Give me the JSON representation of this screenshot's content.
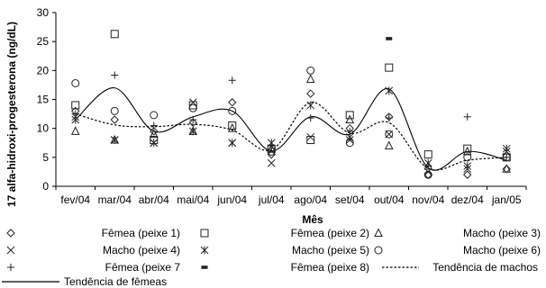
{
  "chart_data": {
    "type": "scatter",
    "title": "",
    "xlabel": "Mês",
    "ylabel": "17 alfa-hidroxi-progesterona (ng/dL)",
    "ylim": [
      0,
      30
    ],
    "yticks": [
      0,
      5,
      10,
      15,
      20,
      25,
      30
    ],
    "grid": false,
    "legend_position": "bottom",
    "categories": [
      "fev/04",
      "mar/04",
      "abr/04",
      "mai/04",
      "jun/04",
      "jul/04",
      "ago/04",
      "set/04",
      "out/04",
      "nov/04",
      "dez/04",
      "jan/05"
    ],
    "series": [
      {
        "name": "Fêmea (peixe 1)",
        "marker": "diamond",
        "values": [
          13,
          11.5,
          9.5,
          11,
          14.5,
          5.5,
          16,
          10,
          12,
          2,
          2,
          3
        ]
      },
      {
        "name": "Fêmea (peixe 2)",
        "marker": "square",
        "values": [
          14,
          26.3,
          8,
          14,
          10.5,
          6.5,
          8,
          12.3,
          20.5,
          5.5,
          6.5,
          5
        ]
      },
      {
        "name": "Macho (peixe 3)",
        "marker": "triangle",
        "values": [
          9.5,
          8,
          9,
          9.5,
          10,
          6.5,
          18.5,
          11.5,
          7,
          3.5,
          6,
          3
        ]
      },
      {
        "name": "Macho (peixe 4)",
        "marker": "x",
        "values": [
          12,
          8,
          7.5,
          14.5,
          7.5,
          4,
          8.5,
          8,
          9,
          2.5,
          3,
          6
        ]
      },
      {
        "name": "Macho (peixe 5)",
        "marker": "asterisk",
        "values": [
          11.5,
          8,
          7.5,
          9.5,
          7.5,
          7.5,
          14,
          8.5,
          16.5,
          4,
          3.5,
          6.5
        ]
      },
      {
        "name": "Macho (peixe 6)",
        "marker": "circle",
        "values": [
          17.8,
          13,
          12.3,
          13.5,
          13,
          6,
          20,
          7.5,
          9,
          2,
          5,
          5
        ]
      },
      {
        "name": "Fêmea (peixe 7",
        "marker": "plus",
        "values": [
          12.5,
          19.2,
          10.5,
          11.5,
          18.3,
          7,
          11.8,
          9.5,
          11.8,
          3.5,
          12,
          5
        ]
      },
      {
        "name": "Fêmea (peixe 8)",
        "marker": "dash",
        "values": [
          null,
          null,
          null,
          null,
          null,
          null,
          null,
          null,
          25.5,
          null,
          null,
          null
        ]
      }
    ],
    "trends": [
      {
        "name": "Tendência de machos",
        "style": "dotted",
        "values": [
          12.5,
          10.6,
          10.3,
          10.7,
          9.7,
          6.3,
          14.5,
          9.2,
          11,
          3.1,
          4.5,
          5
        ]
      },
      {
        "name": "Tendência de fêmeas",
        "style": "solid",
        "values": [
          11.5,
          17,
          9.5,
          12,
          13,
          6.1,
          12,
          9,
          16.8,
          3.2,
          6,
          4.5
        ]
      }
    ]
  }
}
